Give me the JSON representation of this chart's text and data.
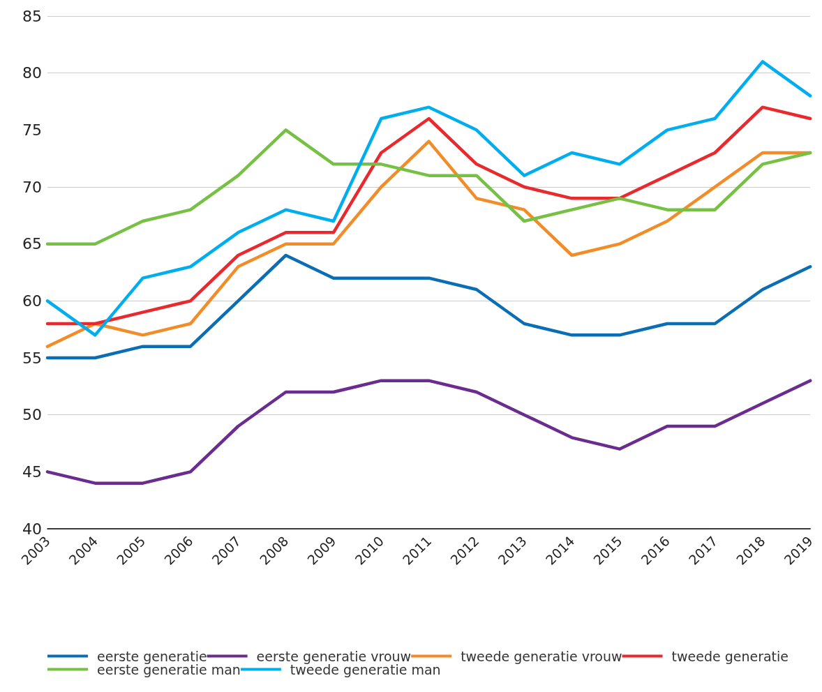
{
  "chart_data": {
    "type": "line",
    "categories": [
      "2003",
      "2004",
      "2005",
      "2006",
      "2007",
      "2008",
      "2009",
      "2010",
      "2011",
      "2012",
      "2013",
      "2014",
      "2015",
      "2016",
      "2017",
      "2018",
      "2019"
    ],
    "series": [
      {
        "name": "eerste generatie",
        "color": "#0a6eb4",
        "values": [
          55,
          55,
          56,
          56,
          60,
          64,
          62,
          62,
          62,
          61,
          58,
          57,
          57,
          58,
          58,
          61,
          63
        ]
      },
      {
        "name": "eerste generatie vrouw",
        "color": "#6a2c8e",
        "values": [
          45,
          44,
          44,
          45,
          49,
          52,
          52,
          53,
          53,
          52,
          50,
          48,
          47,
          49,
          49,
          51,
          53
        ]
      },
      {
        "name": "tweede generatie vrouw",
        "color": "#f28c28",
        "values": [
          56,
          58,
          57,
          58,
          63,
          65,
          65,
          70,
          74,
          69,
          68,
          64,
          65,
          67,
          70,
          73,
          73
        ]
      },
      {
        "name": "tweede generatie",
        "color": "#e8292e",
        "values": [
          58,
          58,
          59,
          60,
          64,
          66,
          66,
          73,
          76,
          72,
          70,
          69,
          69,
          71,
          73,
          77,
          76
        ]
      },
      {
        "name": "eerste generatie man",
        "color": "#76c043",
        "values": [
          65,
          65,
          67,
          68,
          71,
          75,
          72,
          72,
          71,
          71,
          67,
          68,
          69,
          68,
          68,
          72,
          73
        ]
      },
      {
        "name": "tweede generatie man",
        "color": "#00aeef",
        "values": [
          60,
          57,
          62,
          63,
          66,
          68,
          67,
          76,
          77,
          75,
          71,
          73,
          72,
          75,
          76,
          81,
          78
        ]
      }
    ],
    "ylim": [
      40,
      85
    ],
    "yticks": [
      40,
      45,
      50,
      55,
      60,
      65,
      70,
      75,
      80,
      85
    ],
    "grid": "y",
    "legend": "bottom",
    "marker": "none",
    "line_style": "solid"
  }
}
